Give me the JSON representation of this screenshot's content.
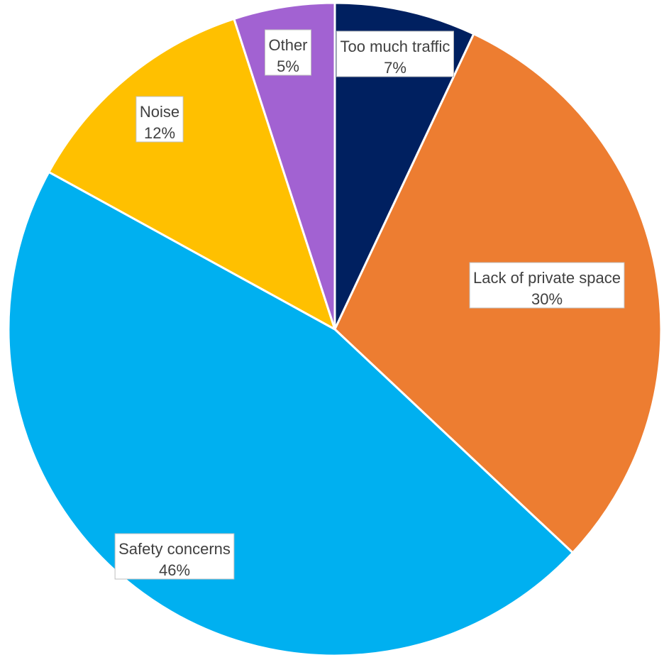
{
  "chart_data": {
    "type": "pie",
    "title": "",
    "slices": [
      {
        "label": "Too much traffic",
        "value": 7,
        "display": "7%",
        "color": "#002060"
      },
      {
        "label": "Lack of private space",
        "value": 30,
        "display": "30%",
        "color": "#ED7D31"
      },
      {
        "label": "Safety concerns",
        "value": 46,
        "display": "46%",
        "color": "#00B0F0"
      },
      {
        "label": "Noise",
        "value": 12,
        "display": "12%",
        "color": "#FFC000"
      },
      {
        "label": "Other",
        "value": 5,
        "display": "5%",
        "color": "#A262D2"
      }
    ],
    "start_angle_deg": 0,
    "direction": "clockwise",
    "legend": "none",
    "data_labels": "category-and-percent"
  }
}
